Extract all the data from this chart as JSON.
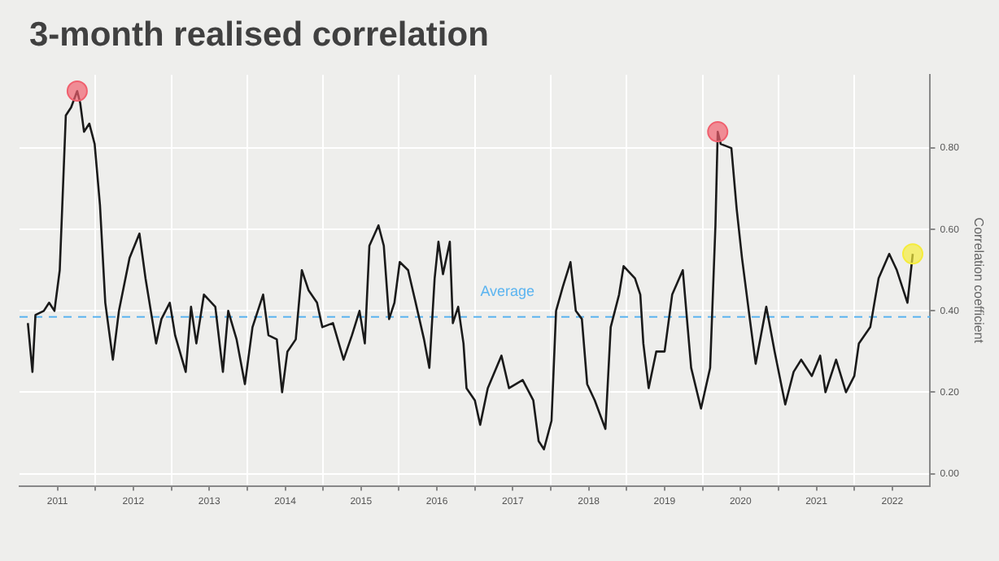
{
  "chart_data": {
    "type": "line",
    "title": "3-month realised correlation",
    "ylabel": "Correlation coefficient",
    "xlim": [
      2011.0,
      2023.0
    ],
    "xticks": [
      {
        "value": 2011.5,
        "label": "2011"
      },
      {
        "value": 2012,
        "label": null
      },
      {
        "value": 2012.5,
        "label": "2012"
      },
      {
        "value": 2013,
        "label": null
      },
      {
        "value": 2013.5,
        "label": "2013"
      },
      {
        "value": 2014,
        "label": null
      },
      {
        "value": 2014.5,
        "label": "2014"
      },
      {
        "value": 2015,
        "label": null
      },
      {
        "value": 2015.5,
        "label": "2015"
      },
      {
        "value": 2016,
        "label": null
      },
      {
        "value": 2016.5,
        "label": "2016"
      },
      {
        "value": 2017,
        "label": null
      },
      {
        "value": 2017.5,
        "label": "2017"
      },
      {
        "value": 2018,
        "label": null
      },
      {
        "value": 2018.5,
        "label": "2018"
      },
      {
        "value": 2019,
        "label": null
      },
      {
        "value": 2019.5,
        "label": "2019"
      },
      {
        "value": 2020,
        "label": null
      },
      {
        "value": 2020.5,
        "label": "2020"
      },
      {
        "value": 2021,
        "label": null
      },
      {
        "value": 2021.5,
        "label": "2021"
      },
      {
        "value": 2022,
        "label": null
      },
      {
        "value": 2022.5,
        "label": "2022"
      }
    ],
    "ylim": [
      -0.03,
      0.98
    ],
    "yticks": [
      {
        "value": 0,
        "label": "0.00"
      },
      {
        "value": 0.2,
        "label": "0.20"
      },
      {
        "value": 0.4,
        "label": "0.40"
      },
      {
        "value": 0.6,
        "label": "0.60"
      },
      {
        "value": 0.8,
        "label": "0.80"
      }
    ],
    "grid": true,
    "legend": false,
    "ref_lines": [
      {
        "axis": "y",
        "value": 0.385,
        "label": "Average",
        "color": "#5bb4f0",
        "line_style": "dashed"
      }
    ],
    "series": [
      {
        "color": "#1a1a1a",
        "marker": "none",
        "line_style": "solid",
        "x": [
          2011.11,
          2011.17,
          2011.21,
          2011.32,
          2011.39,
          2011.46,
          2011.53,
          2011.61,
          2011.68,
          2011.76,
          2011.8,
          2011.85,
          2011.92,
          2011.99,
          2012.06,
          2012.13,
          2012.23,
          2012.31,
          2012.45,
          2012.58,
          2012.66,
          2012.73,
          2012.8,
          2012.87,
          2012.98,
          2013.05,
          2013.19,
          2013.26,
          2013.33,
          2013.43,
          2013.58,
          2013.68,
          2013.75,
          2013.86,
          2013.97,
          2014.07,
          2014.21,
          2014.28,
          2014.39,
          2014.46,
          2014.53,
          2014.64,
          2014.72,
          2014.81,
          2014.92,
          2014.99,
          2015.13,
          2015.27,
          2015.38,
          2015.48,
          2015.55,
          2015.61,
          2015.73,
          2015.8,
          2015.87,
          2015.94,
          2016.01,
          2016.12,
          2016.22,
          2016.33,
          2016.4,
          2016.47,
          2016.52,
          2016.58,
          2016.67,
          2016.71,
          2016.78,
          2016.85,
          2016.89,
          2017.0,
          2017.07,
          2017.17,
          2017.35,
          2017.45,
          2017.63,
          2017.77,
          2017.84,
          2017.91,
          2018.01,
          2018.07,
          2018.16,
          2018.26,
          2018.33,
          2018.41,
          2018.48,
          2018.58,
          2018.72,
          2018.79,
          2018.9,
          2018.96,
          2019.11,
          2019.18,
          2019.22,
          2019.29,
          2019.39,
          2019.5,
          2019.6,
          2019.74,
          2019.85,
          2019.98,
          2020.1,
          2020.17,
          2020.2,
          2020.24,
          2020.38,
          2020.45,
          2020.52,
          2020.63,
          2020.7,
          2020.84,
          2020.95,
          2021.09,
          2021.2,
          2021.3,
          2021.44,
          2021.55,
          2021.62,
          2021.76,
          2021.89,
          2022.0,
          2022.06,
          2022.21,
          2022.32,
          2022.46,
          2022.56,
          2022.63,
          2022.7,
          2022.77
        ],
        "values": [
          0.37,
          0.25,
          0.39,
          0.4,
          0.42,
          0.4,
          0.5,
          0.88,
          0.9,
          0.94,
          0.91,
          0.84,
          0.86,
          0.81,
          0.66,
          0.42,
          0.28,
          0.4,
          0.53,
          0.59,
          0.48,
          0.4,
          0.32,
          0.38,
          0.42,
          0.34,
          0.25,
          0.41,
          0.32,
          0.44,
          0.41,
          0.25,
          0.4,
          0.33,
          0.22,
          0.36,
          0.44,
          0.34,
          0.33,
          0.2,
          0.3,
          0.33,
          0.5,
          0.45,
          0.42,
          0.36,
          0.37,
          0.28,
          0.34,
          0.4,
          0.32,
          0.56,
          0.61,
          0.56,
          0.38,
          0.42,
          0.52,
          0.5,
          0.42,
          0.33,
          0.26,
          0.48,
          0.57,
          0.49,
          0.57,
          0.37,
          0.41,
          0.32,
          0.21,
          0.18,
          0.12,
          0.21,
          0.29,
          0.21,
          0.23,
          0.18,
          0.08,
          0.06,
          0.13,
          0.4,
          0.46,
          0.52,
          0.4,
          0.38,
          0.22,
          0.18,
          0.11,
          0.36,
          0.44,
          0.51,
          0.48,
          0.44,
          0.32,
          0.21,
          0.3,
          0.3,
          0.44,
          0.5,
          0.26,
          0.16,
          0.26,
          0.61,
          0.84,
          0.81,
          0.8,
          0.65,
          0.53,
          0.37,
          0.27,
          0.41,
          0.3,
          0.17,
          0.25,
          0.28,
          0.24,
          0.29,
          0.2,
          0.28,
          0.2,
          0.24,
          0.32,
          0.36,
          0.48,
          0.54,
          0.5,
          0.46,
          0.42,
          0.54
        ]
      },
      {
        "type": "scatter",
        "marker": "circle",
        "x": [
          2011.76,
          2020.2,
          2022.77
        ],
        "values": [
          0.94,
          0.84,
          0.54
        ],
        "colors": [
          "#f0606e",
          "#f0606e",
          "#f5ec3c"
        ]
      }
    ]
  }
}
